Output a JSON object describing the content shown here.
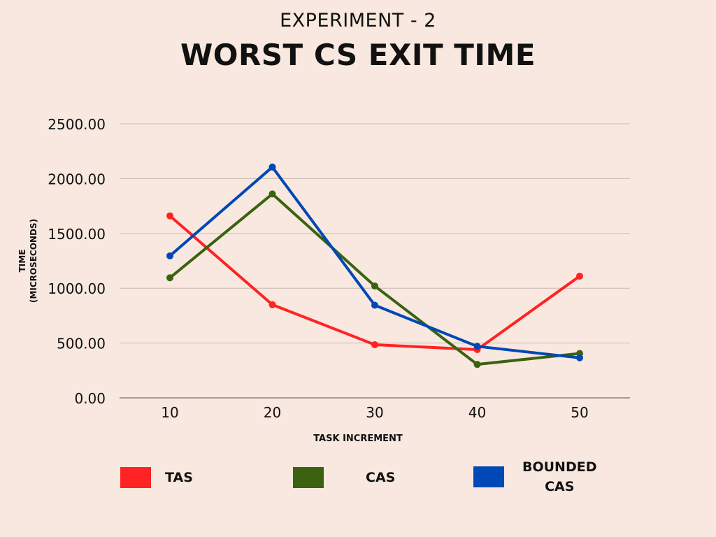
{
  "chart_data": {
    "type": "line",
    "subtitle": "EXPERIMENT - 2",
    "title": "WORST CS EXIT TIME",
    "xlabel": "TASK INCREMENT",
    "ylabel_line1": "TIME",
    "ylabel_line2": "(MICROSECONDS)",
    "categories": [
      "10",
      "20",
      "30",
      "40",
      "50"
    ],
    "ylim": [
      0,
      2500
    ],
    "yticks": [
      "0.00",
      "500.00",
      "1000.00",
      "1500.00",
      "2000.00",
      "2500.00"
    ],
    "grid": true,
    "legend_position": "bottom",
    "series": [
      {
        "name": "TAS",
        "color": "#ff2323",
        "values": [
          1660,
          850,
          485,
          440,
          1110
        ]
      },
      {
        "name": "CAS",
        "color": "#3a6210",
        "values": [
          1095,
          1860,
          1020,
          305,
          405
        ]
      },
      {
        "name": "BOUNDED CAS",
        "name_line1": "BOUNDED",
        "name_line2": "CAS",
        "color": "#0048b5",
        "values": [
          1295,
          2105,
          845,
          470,
          365
        ]
      }
    ]
  }
}
